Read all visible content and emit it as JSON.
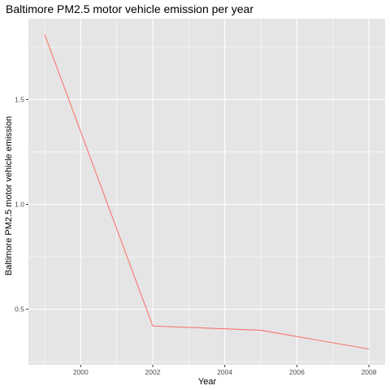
{
  "chart_data": {
    "type": "line",
    "title": "Baltimore PM2.5 motor vehicle emission per year",
    "xlabel": "Year",
    "ylabel": "Baltimore PM2.5 motor vehicle emission",
    "x": [
      1999,
      2002,
      2005,
      2008
    ],
    "series": [
      {
        "values": [
          1.81,
          0.42,
          0.4,
          0.31
        ],
        "color": "#F8766D"
      }
    ],
    "xlim": [
      1998.55,
      2008.45
    ],
    "ylim": [
      0.235,
      1.885
    ],
    "xticks": [
      2000,
      2002,
      2004,
      2006,
      2008
    ],
    "xtick_labels": [
      "2000",
      "2002",
      "2004",
      "2006",
      "2008"
    ],
    "yticks": [
      0.5,
      1.0,
      1.5
    ],
    "ytick_labels": [
      "0.5",
      "1.0",
      "1.5"
    ],
    "grid": true,
    "panel_background": "#E5E5E5",
    "grid_color": "#FFFFFF"
  }
}
